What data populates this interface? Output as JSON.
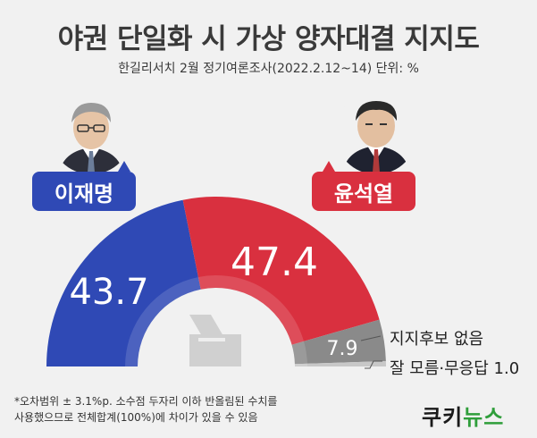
{
  "header": {
    "title": "야권 단일화 시 가상 양자대결 지지도",
    "subtitle": "한길리서치 2월 정기여론조사(2022.2.12~14) 단위: %"
  },
  "candidates": [
    {
      "name": "이재명",
      "color": "#2f49b5"
    },
    {
      "name": "윤석열",
      "color": "#d9303f"
    }
  ],
  "chart_data": {
    "type": "pie",
    "style": "semicircle-donut",
    "series": [
      {
        "name": "이재명",
        "value": 43.7,
        "color": "#2f49b5"
      },
      {
        "name": "윤석열",
        "value": 47.4,
        "color": "#d9303f"
      },
      {
        "name": "지지후보 없음",
        "value": 7.9,
        "color": "#8a8a8a"
      },
      {
        "name": "잘 모름·무응답",
        "value": 1.0,
        "color": "#c8c8c8"
      }
    ],
    "labels": {
      "lee_value": "43.7",
      "yoon_value": "47.4",
      "none_value": "7.9",
      "none_label": "지지후보 없음",
      "unknown_label": "잘 모름·무응답 1.0"
    }
  },
  "footnote": {
    "line1": "*오차범위 ± 3.1%p. 소수점 두자리 이하 반올림된 수치를",
    "line2": "  사용했으므로 전체합계(100%)에 차이가 있을 수 있음"
  },
  "brand": {
    "part1": "쿠키",
    "part2": "뉴스"
  }
}
